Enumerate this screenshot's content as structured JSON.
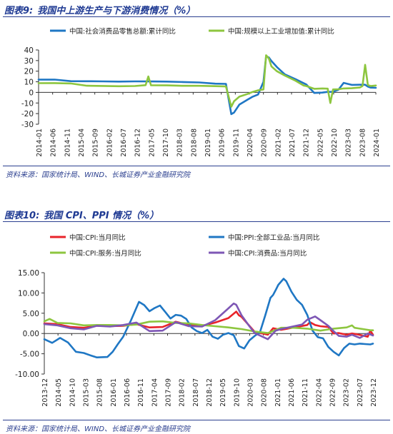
{
  "figures": [
    {
      "number": "图表9:",
      "title": "我国中上游生产与下游消费情况（%）",
      "source": "资料来源：国家统计局、WIND、长城证券产业金融研究院"
    },
    {
      "number": "图表10:",
      "title": "我国 CPI、PPI 情况（%）",
      "source": "资料来源：国家统计局、WIND、长城证券产业金融研究院"
    }
  ],
  "chart_data": [
    {
      "type": "line",
      "title": "",
      "ylim": [
        -30,
        40
      ],
      "yticks": [
        "40",
        "30",
        "20",
        "10",
        "0",
        "-10",
        "-20",
        "-30"
      ],
      "xticks": [
        "2014-01",
        "2014-06",
        "2014-11",
        "2015-04",
        "2015-09",
        "2016-02",
        "2016-07",
        "2016-12",
        "2017-05",
        "2017-10",
        "2018-03",
        "2018-08",
        "2019-01",
        "2019-06",
        "2019-11",
        "2020-04",
        "2020-09",
        "2021-02",
        "2021-07",
        "2021-12",
        "2022-05",
        "2022-10",
        "2023-03",
        "2023-08",
        "2024-01"
      ],
      "x_range": [
        0,
        126
      ],
      "legend_position": "top",
      "series": [
        {
          "name": "中国:社会消费品零售总额:累计同比",
          "color": "#1f77c4",
          "x": [
            0,
            6,
            12,
            18,
            24,
            30,
            36,
            42,
            48,
            54,
            60,
            66,
            70,
            72,
            73,
            75,
            78,
            80,
            82,
            84,
            85,
            86,
            87,
            89,
            92,
            96,
            100,
            103,
            106,
            108,
            110,
            112,
            114,
            117,
            120,
            122,
            123,
            124,
            126
          ],
          "values": [
            12,
            12.1,
            10.6,
            10.5,
            10.4,
            10.2,
            10.4,
            10.3,
            10.2,
            9.8,
            9.4,
            8.2,
            8,
            -20.5,
            -19,
            -11.5,
            -7,
            -4,
            -2,
            10,
            34,
            33,
            29.6,
            24,
            17,
            12.5,
            7.5,
            -0.5,
            -0.2,
            0.5,
            0.5,
            2.5,
            9,
            7.1,
            7.2,
            7.2,
            5.5,
            4.5,
            4.3
          ]
        },
        {
          "name": "中国:规模以上工业增加值:累计同比",
          "color": "#8dc63f",
          "x": [
            0,
            6,
            12,
            18,
            24,
            30,
            36,
            40,
            41,
            42,
            48,
            54,
            60,
            66,
            70,
            72,
            73,
            75,
            78,
            80,
            82,
            84,
            85,
            86,
            87,
            89,
            92,
            96,
            99,
            100,
            103,
            106,
            108,
            109,
            110,
            112,
            114,
            117,
            120,
            121,
            122,
            123,
            124,
            126
          ],
          "values": [
            8.7,
            8.8,
            8.4,
            6.3,
            6.1,
            5.8,
            6,
            6.8,
            15,
            6.7,
            6.6,
            6.2,
            6.2,
            5.9,
            5.6,
            -13.5,
            -8.4,
            -4,
            -1.5,
            0.5,
            2,
            2.8,
            35,
            32,
            24.5,
            20,
            15.9,
            11,
            6.5,
            6,
            3.4,
            3.7,
            3.5,
            -10,
            2.8,
            3,
            3.7,
            3.9,
            4.6,
            6,
            26,
            7,
            6,
            6.5
          ]
        }
      ]
    },
    {
      "type": "line",
      "title": "",
      "ylim": [
        -10,
        15
      ],
      "yticks": [
        "15.00",
        "10.00",
        "5.00",
        "0.00",
        "-5.00",
        "-10.00"
      ],
      "xticks": [
        "2013-12",
        "2014-05",
        "2014-10",
        "2015-03",
        "2015-08",
        "2016-01",
        "2016-06",
        "2016-11",
        "2017-04",
        "2017-09",
        "2018-02",
        "2018-07",
        "2018-12",
        "2019-05",
        "2019-10",
        "2020-03",
        "2020-08",
        "2021-01",
        "2021-06",
        "2021-11",
        "2022-04",
        "2022-09",
        "2023-02",
        "2023-07",
        "2023-12"
      ],
      "x_range": [
        0,
        125
      ],
      "legend_position": "top",
      "series": [
        {
          "name": "中国:CPI:当月同比",
          "color": "#e8232a",
          "x": [
            0,
            5,
            10,
            15,
            20,
            25,
            30,
            35,
            40,
            45,
            50,
            55,
            60,
            65,
            70,
            73,
            74,
            75,
            80,
            85,
            87,
            90,
            95,
            100,
            101,
            103,
            105,
            108,
            110,
            112,
            115,
            117,
            119,
            121,
            123,
            124,
            125
          ],
          "values": [
            2.5,
            2.3,
            1.6,
            1.4,
            1.9,
            1.8,
            1.9,
            2.3,
            1.5,
            1.6,
            2.9,
            2.1,
            1.9,
            2.7,
            3.8,
            5.4,
            4.5,
            4.1,
            0.4,
            -0.3,
            1.3,
            0.9,
            1.5,
            2.1,
            2.8,
            2.1,
            1.8,
            1.6,
            0,
            0.1,
            -0.3,
            0,
            -0.2,
            -0.5,
            -0.8,
            0.7,
            -0.3
          ]
        },
        {
          "name": "中国:PPI:全部工业品:当月同比",
          "color": "#1f77c4",
          "x": [
            0,
            3,
            6,
            9,
            12,
            15,
            18,
            20,
            24,
            26,
            28,
            30,
            33,
            36,
            38,
            40,
            42,
            44,
            46,
            48,
            50,
            52,
            54,
            56,
            58,
            60,
            62,
            64,
            66,
            68,
            70,
            72,
            74,
            76,
            78,
            80,
            82,
            84,
            86,
            87,
            88,
            89,
            91,
            92,
            94,
            96,
            98,
            100,
            102,
            104,
            106,
            108,
            110,
            112,
            114,
            116,
            118,
            120,
            122,
            124,
            125
          ],
          "values": [
            -1.4,
            -2.3,
            -1.1,
            -2.2,
            -4.5,
            -4.8,
            -5.5,
            -5.9,
            -5.8,
            -4.5,
            -2.6,
            -0.8,
            3.3,
            7.8,
            7,
            5.5,
            6.3,
            6.9,
            5.3,
            3.7,
            4.6,
            4.4,
            3.6,
            1.5,
            0.6,
            0.1,
            0.9,
            -0.8,
            -1.3,
            -0.3,
            0.1,
            -0.4,
            -3.1,
            -3.7,
            -1.7,
            -0.6,
            0.3,
            4.4,
            8.8,
            9.5,
            10.7,
            12,
            13.5,
            12.9,
            10.3,
            8.3,
            7.1,
            4.6,
            0.7,
            -0.9,
            -1.2,
            -3.3,
            -4.5,
            -5.4,
            -3.6,
            -2.5,
            -2.7,
            -2.5,
            -2.6,
            -2.7,
            -2.5
          ]
        },
        {
          "name": "中国:CPI:服务:当月同比",
          "color": "#8dc63f",
          "x": [
            0,
            2,
            5,
            10,
            15,
            20,
            25,
            30,
            35,
            40,
            45,
            50,
            55,
            60,
            65,
            70,
            75,
            80,
            85,
            90,
            95,
            100,
            105,
            110,
            115,
            117,
            118,
            120,
            122,
            124,
            125
          ],
          "values": [
            3,
            3.6,
            2.6,
            2.5,
            2,
            2.1,
            2.1,
            2,
            2.2,
            2.9,
            3,
            2.6,
            2.5,
            2.1,
            1.8,
            1.5,
            1.1,
            0.5,
            0.1,
            1.4,
            1.4,
            1.2,
            0.7,
            1.2,
            1.5,
            2,
            1.4,
            1.2,
            1,
            0.8,
            0.8
          ]
        },
        {
          "name": "中国:CPI:消费品:当月同比",
          "color": "#7e57b5",
          "x": [
            0,
            5,
            10,
            15,
            20,
            25,
            30,
            35,
            40,
            45,
            50,
            55,
            60,
            65,
            70,
            72,
            73,
            75,
            78,
            80,
            85,
            88,
            90,
            95,
            98,
            100,
            103,
            105,
            108,
            110,
            112,
            115,
            117,
            120,
            123,
            125
          ],
          "values": [
            2.3,
            2,
            1.3,
            1,
            1.9,
            1.7,
            2.1,
            2.7,
            0.6,
            0.7,
            2.8,
            1.8,
            1.7,
            3.3,
            6.2,
            7.4,
            7.1,
            4.5,
            1.8,
            0.1,
            -1.4,
            0.7,
            1.1,
            1.8,
            2.2,
            3.4,
            4.2,
            3.3,
            1.9,
            0.6,
            -0.6,
            -0.8,
            -0.3,
            -1.1,
            0,
            -0.5
          ]
        }
      ]
    }
  ]
}
